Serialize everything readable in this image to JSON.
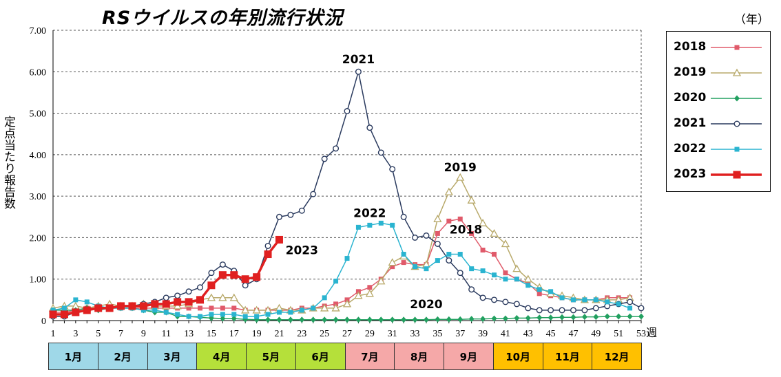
{
  "title": "RSウイルスの年別流行状況",
  "unit_label": "（年）",
  "chart_data": {
    "type": "line",
    "title": "RSウイルスの年別流行状況",
    "xlabel": "週",
    "ylabel": "定点当たり報告数",
    "xlim": [
      1,
      53
    ],
    "ylim": [
      0,
      7
    ],
    "y_ticks": [
      "0",
      "1.00",
      "2.00",
      "3.00",
      "4.00",
      "5.00",
      "6.00",
      "7.00"
    ],
    "x_ticks": [
      "1",
      "3",
      "5",
      "7",
      "9",
      "11",
      "13",
      "15",
      "17",
      "19",
      "21",
      "23",
      "25",
      "27",
      "29",
      "31",
      "33",
      "35",
      "37",
      "39",
      "41",
      "43",
      "45",
      "47",
      "49",
      "51",
      "53"
    ],
    "x_axis_unit": "週",
    "grid": "horizontal dashed",
    "legend_position": "right",
    "series": [
      {
        "name": "2018",
        "color": "#e05a6a",
        "marker": "square-small",
        "values": [
          0.2,
          0.2,
          0.25,
          0.3,
          0.3,
          0.3,
          0.3,
          0.3,
          0.3,
          0.3,
          0.3,
          0.3,
          0.3,
          0.3,
          0.3,
          0.3,
          0.3,
          0.25,
          0.25,
          0.25,
          0.25,
          0.25,
          0.3,
          0.3,
          0.35,
          0.4,
          0.5,
          0.7,
          0.8,
          1.0,
          1.3,
          1.4,
          1.35,
          1.35,
          2.1,
          2.4,
          2.45,
          2.1,
          1.7,
          1.6,
          1.15,
          1.0,
          0.9,
          0.65,
          0.6,
          0.55,
          0.5,
          0.5,
          0.5,
          0.55,
          0.55,
          0.55,
          null
        ]
      },
      {
        "name": "2019",
        "color": "#b8a96a",
        "marker": "triangle-open",
        "values": [
          0.3,
          0.35,
          0.35,
          0.3,
          0.35,
          0.4,
          0.35,
          0.35,
          0.4,
          0.35,
          0.35,
          0.35,
          0.4,
          0.5,
          0.55,
          0.55,
          0.55,
          0.25,
          0.25,
          0.25,
          0.3,
          0.25,
          0.25,
          0.3,
          0.3,
          0.3,
          0.4,
          0.6,
          0.65,
          0.95,
          1.4,
          1.55,
          1.3,
          1.35,
          2.45,
          3.1,
          3.45,
          2.9,
          2.35,
          2.1,
          1.85,
          1.25,
          1.0,
          0.8,
          0.65,
          0.6,
          0.55,
          0.5,
          0.5,
          0.5,
          0.5,
          0.55,
          null
        ]
      },
      {
        "name": "2020",
        "color": "#22a060",
        "marker": "diamond",
        "values": [
          0.25,
          0.25,
          0.25,
          0.3,
          0.25,
          0.3,
          0.3,
          0.3,
          0.25,
          0.2,
          0.2,
          0.1,
          0.1,
          0.08,
          0.06,
          0.05,
          0.05,
          0.03,
          0.02,
          0.02,
          0.02,
          0.02,
          0.02,
          0.02,
          0.02,
          0.02,
          0.02,
          0.02,
          0.02,
          0.02,
          0.02,
          0.02,
          0.02,
          0.02,
          0.03,
          0.03,
          0.03,
          0.04,
          0.04,
          0.05,
          0.05,
          0.06,
          0.06,
          0.07,
          0.07,
          0.08,
          0.08,
          0.09,
          0.09,
          0.1,
          0.1,
          0.1,
          0.1
        ]
      },
      {
        "name": "2021",
        "color": "#2a3a5e",
        "marker": "circle-open",
        "values": [
          0.1,
          0.1,
          0.2,
          0.25,
          0.3,
          0.3,
          0.35,
          0.35,
          0.4,
          0.45,
          0.55,
          0.6,
          0.7,
          0.8,
          1.15,
          1.35,
          1.2,
          0.85,
          1.0,
          1.8,
          2.5,
          2.55,
          2.65,
          3.05,
          3.9,
          4.15,
          5.05,
          6.0,
          4.65,
          4.05,
          3.65,
          2.5,
          2.0,
          2.05,
          1.85,
          1.45,
          1.15,
          0.75,
          0.55,
          0.5,
          0.45,
          0.4,
          0.3,
          0.25,
          0.25,
          0.25,
          0.25,
          0.25,
          0.3,
          0.35,
          0.4,
          0.45,
          0.3
        ]
      },
      {
        "name": "2022",
        "color": "#2ab4d0",
        "marker": "square-small",
        "values": [
          0.25,
          0.3,
          0.5,
          0.45,
          0.35,
          0.3,
          0.3,
          0.3,
          0.25,
          0.25,
          0.2,
          0.15,
          0.1,
          0.1,
          0.15,
          0.15,
          0.15,
          0.1,
          0.1,
          0.15,
          0.2,
          0.2,
          0.25,
          0.3,
          0.55,
          0.95,
          1.5,
          2.25,
          2.3,
          2.35,
          2.3,
          1.6,
          1.3,
          1.25,
          1.45,
          1.6,
          1.6,
          1.25,
          1.2,
          1.1,
          1.0,
          1.0,
          0.85,
          0.75,
          0.7,
          0.55,
          0.5,
          0.5,
          0.5,
          0.45,
          0.4,
          0.3,
          null
        ]
      },
      {
        "name": "2023",
        "color": "#e02020",
        "marker": "square-large",
        "values": [
          0.15,
          0.15,
          0.2,
          0.25,
          0.3,
          0.3,
          0.35,
          0.35,
          0.35,
          0.4,
          0.4,
          0.45,
          0.45,
          0.5,
          0.85,
          1.1,
          1.1,
          1.0,
          1.05,
          1.6,
          1.95,
          null,
          null,
          null,
          null,
          null,
          null,
          null,
          null,
          null,
          null,
          null,
          null,
          null,
          null,
          null,
          null,
          null,
          null,
          null,
          null,
          null,
          null,
          null,
          null,
          null,
          null,
          null,
          null,
          null,
          null,
          null,
          null
        ]
      }
    ],
    "annotations": [
      {
        "text": "2021",
        "x": 28,
        "y": 6.2
      },
      {
        "text": "2022",
        "x": 29,
        "y": 2.5
      },
      {
        "text": "2019",
        "x": 37,
        "y": 3.6
      },
      {
        "text": "2018",
        "x": 37.5,
        "y": 2.1
      },
      {
        "text": "2023",
        "x": 23,
        "y": 1.6
      },
      {
        "text": "2020",
        "x": 34,
        "y": 0.3
      }
    ],
    "months": [
      {
        "label": "1月",
        "color": "#9fd8e8"
      },
      {
        "label": "2月",
        "color": "#9fd8e8"
      },
      {
        "label": "3月",
        "color": "#9fd8e8"
      },
      {
        "label": "4月",
        "color": "#b5e03a"
      },
      {
        "label": "5月",
        "color": "#b5e03a"
      },
      {
        "label": "6月",
        "color": "#b5e03a"
      },
      {
        "label": "7月",
        "color": "#f5a8a8"
      },
      {
        "label": "8月",
        "color": "#f5a8a8"
      },
      {
        "label": "9月",
        "color": "#f5a8a8"
      },
      {
        "label": "10月",
        "color": "#ffc000"
      },
      {
        "label": "11月",
        "color": "#ffc000"
      },
      {
        "label": "12月",
        "color": "#ffc000"
      }
    ]
  }
}
